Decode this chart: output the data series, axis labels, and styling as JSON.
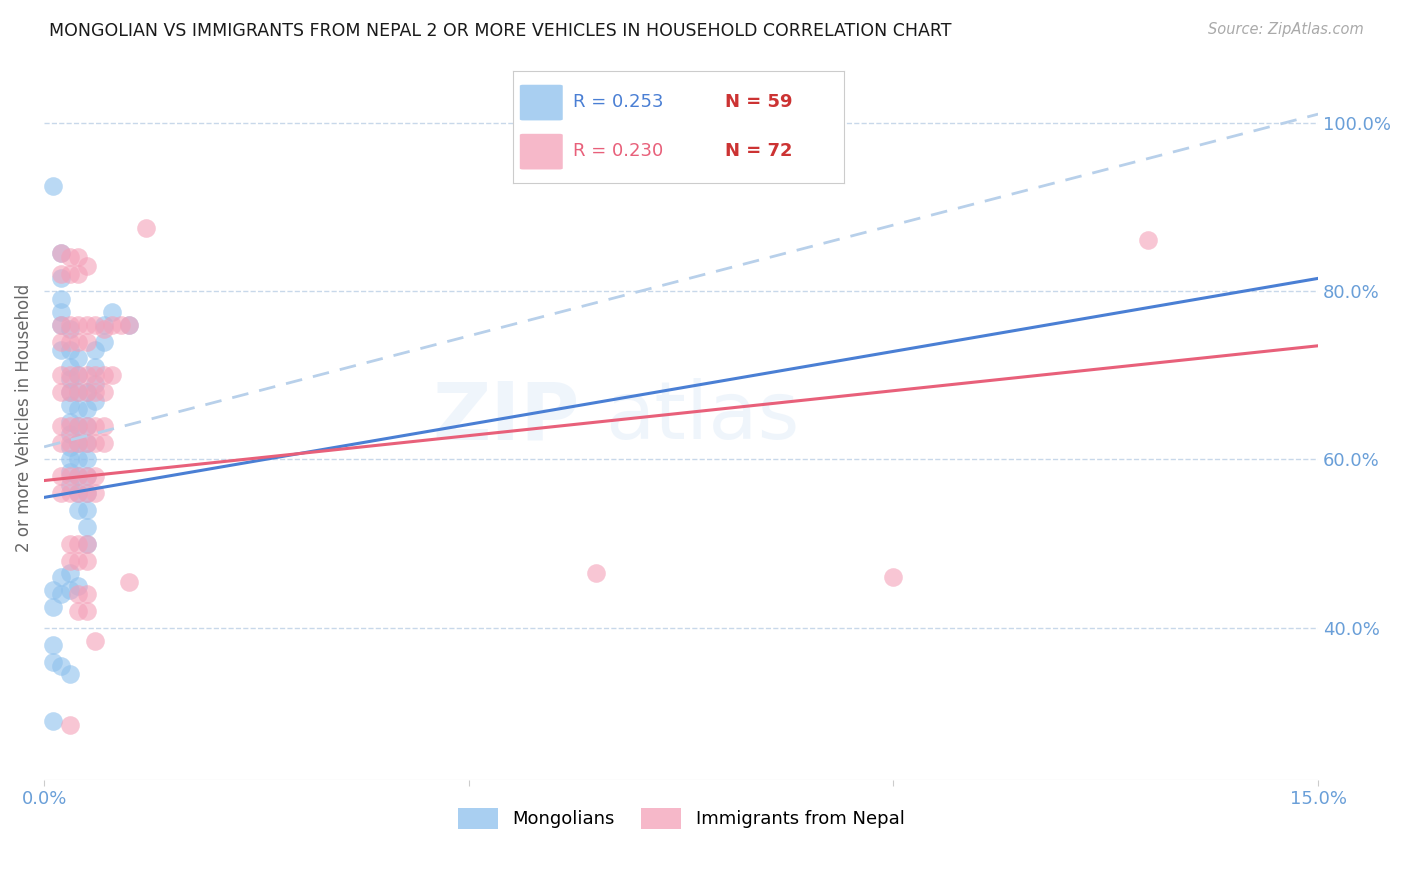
{
  "title": "MONGOLIAN VS IMMIGRANTS FROM NEPAL 2 OR MORE VEHICLES IN HOUSEHOLD CORRELATION CHART",
  "source": "Source: ZipAtlas.com",
  "ylabel": "2 or more Vehicles in Household",
  "xmin": 0.0,
  "xmax": 0.15,
  "ymin": 0.22,
  "ymax": 1.08,
  "y_ticks": [
    0.4,
    0.6,
    0.8,
    1.0
  ],
  "y_tick_labels": [
    "40.0%",
    "60.0%",
    "80.0%",
    "100.0%"
  ],
  "legend_blue_r": "R = 0.253",
  "legend_blue_n": "N = 59",
  "legend_pink_r": "R = 0.230",
  "legend_pink_n": "N = 72",
  "blue_color": "#8dc0ed",
  "pink_color": "#f4a0b8",
  "blue_line_color": "#4a7fd4",
  "pink_line_color": "#e8607a",
  "dashed_line_color": "#b8d0ea",
  "watermark": "ZIPatlas",
  "blue_scatter": [
    [
      0.001,
      0.925
    ],
    [
      0.002,
      0.845
    ],
    [
      0.002,
      0.815
    ],
    [
      0.002,
      0.79
    ],
    [
      0.002,
      0.775
    ],
    [
      0.002,
      0.76
    ],
    [
      0.002,
      0.73
    ],
    [
      0.003,
      0.755
    ],
    [
      0.003,
      0.73
    ],
    [
      0.003,
      0.71
    ],
    [
      0.003,
      0.695
    ],
    [
      0.003,
      0.68
    ],
    [
      0.003,
      0.665
    ],
    [
      0.003,
      0.645
    ],
    [
      0.003,
      0.63
    ],
    [
      0.003,
      0.615
    ],
    [
      0.003,
      0.6
    ],
    [
      0.003,
      0.585
    ],
    [
      0.003,
      0.57
    ],
    [
      0.004,
      0.72
    ],
    [
      0.004,
      0.7
    ],
    [
      0.004,
      0.68
    ],
    [
      0.004,
      0.66
    ],
    [
      0.004,
      0.64
    ],
    [
      0.004,
      0.62
    ],
    [
      0.004,
      0.6
    ],
    [
      0.004,
      0.58
    ],
    [
      0.004,
      0.56
    ],
    [
      0.004,
      0.54
    ],
    [
      0.005,
      0.68
    ],
    [
      0.005,
      0.66
    ],
    [
      0.005,
      0.64
    ],
    [
      0.005,
      0.62
    ],
    [
      0.005,
      0.6
    ],
    [
      0.005,
      0.58
    ],
    [
      0.005,
      0.56
    ],
    [
      0.005,
      0.54
    ],
    [
      0.005,
      0.52
    ],
    [
      0.005,
      0.5
    ],
    [
      0.006,
      0.73
    ],
    [
      0.006,
      0.71
    ],
    [
      0.006,
      0.69
    ],
    [
      0.006,
      0.67
    ],
    [
      0.007,
      0.76
    ],
    [
      0.007,
      0.74
    ],
    [
      0.008,
      0.775
    ],
    [
      0.01,
      0.76
    ],
    [
      0.001,
      0.445
    ],
    [
      0.001,
      0.425
    ],
    [
      0.002,
      0.46
    ],
    [
      0.002,
      0.44
    ],
    [
      0.003,
      0.465
    ],
    [
      0.003,
      0.445
    ],
    [
      0.004,
      0.45
    ],
    [
      0.001,
      0.38
    ],
    [
      0.001,
      0.36
    ],
    [
      0.002,
      0.355
    ],
    [
      0.003,
      0.345
    ],
    [
      0.001,
      0.29
    ]
  ],
  "pink_scatter": [
    [
      0.002,
      0.845
    ],
    [
      0.002,
      0.82
    ],
    [
      0.003,
      0.84
    ],
    [
      0.003,
      0.82
    ],
    [
      0.004,
      0.84
    ],
    [
      0.004,
      0.82
    ],
    [
      0.005,
      0.83
    ],
    [
      0.002,
      0.76
    ],
    [
      0.002,
      0.74
    ],
    [
      0.003,
      0.76
    ],
    [
      0.003,
      0.74
    ],
    [
      0.004,
      0.76
    ],
    [
      0.004,
      0.74
    ],
    [
      0.005,
      0.76
    ],
    [
      0.005,
      0.74
    ],
    [
      0.006,
      0.76
    ],
    [
      0.007,
      0.755
    ],
    [
      0.008,
      0.76
    ],
    [
      0.009,
      0.76
    ],
    [
      0.01,
      0.76
    ],
    [
      0.002,
      0.7
    ],
    [
      0.002,
      0.68
    ],
    [
      0.003,
      0.7
    ],
    [
      0.003,
      0.68
    ],
    [
      0.004,
      0.7
    ],
    [
      0.004,
      0.68
    ],
    [
      0.005,
      0.7
    ],
    [
      0.005,
      0.68
    ],
    [
      0.006,
      0.7
    ],
    [
      0.006,
      0.68
    ],
    [
      0.007,
      0.7
    ],
    [
      0.007,
      0.68
    ],
    [
      0.008,
      0.7
    ],
    [
      0.002,
      0.64
    ],
    [
      0.002,
      0.62
    ],
    [
      0.003,
      0.64
    ],
    [
      0.003,
      0.62
    ],
    [
      0.004,
      0.64
    ],
    [
      0.004,
      0.62
    ],
    [
      0.005,
      0.64
    ],
    [
      0.005,
      0.62
    ],
    [
      0.006,
      0.64
    ],
    [
      0.006,
      0.62
    ],
    [
      0.007,
      0.64
    ],
    [
      0.007,
      0.62
    ],
    [
      0.002,
      0.58
    ],
    [
      0.002,
      0.56
    ],
    [
      0.003,
      0.58
    ],
    [
      0.003,
      0.56
    ],
    [
      0.004,
      0.58
    ],
    [
      0.004,
      0.56
    ],
    [
      0.005,
      0.58
    ],
    [
      0.005,
      0.56
    ],
    [
      0.006,
      0.58
    ],
    [
      0.006,
      0.56
    ],
    [
      0.003,
      0.5
    ],
    [
      0.003,
      0.48
    ],
    [
      0.004,
      0.5
    ],
    [
      0.004,
      0.48
    ],
    [
      0.005,
      0.5
    ],
    [
      0.005,
      0.48
    ],
    [
      0.004,
      0.44
    ],
    [
      0.004,
      0.42
    ],
    [
      0.005,
      0.44
    ],
    [
      0.005,
      0.42
    ],
    [
      0.003,
      0.285
    ],
    [
      0.006,
      0.385
    ],
    [
      0.01,
      0.455
    ],
    [
      0.012,
      0.875
    ],
    [
      0.13,
      0.86
    ],
    [
      0.1,
      0.46
    ],
    [
      0.065,
      0.465
    ]
  ],
  "blue_trendline": [
    [
      0.0,
      0.555
    ],
    [
      0.15,
      0.815
    ]
  ],
  "pink_trendline": [
    [
      0.0,
      0.575
    ],
    [
      0.15,
      0.735
    ]
  ],
  "dashed_line": [
    [
      0.0,
      0.615
    ],
    [
      0.15,
      1.01
    ]
  ]
}
